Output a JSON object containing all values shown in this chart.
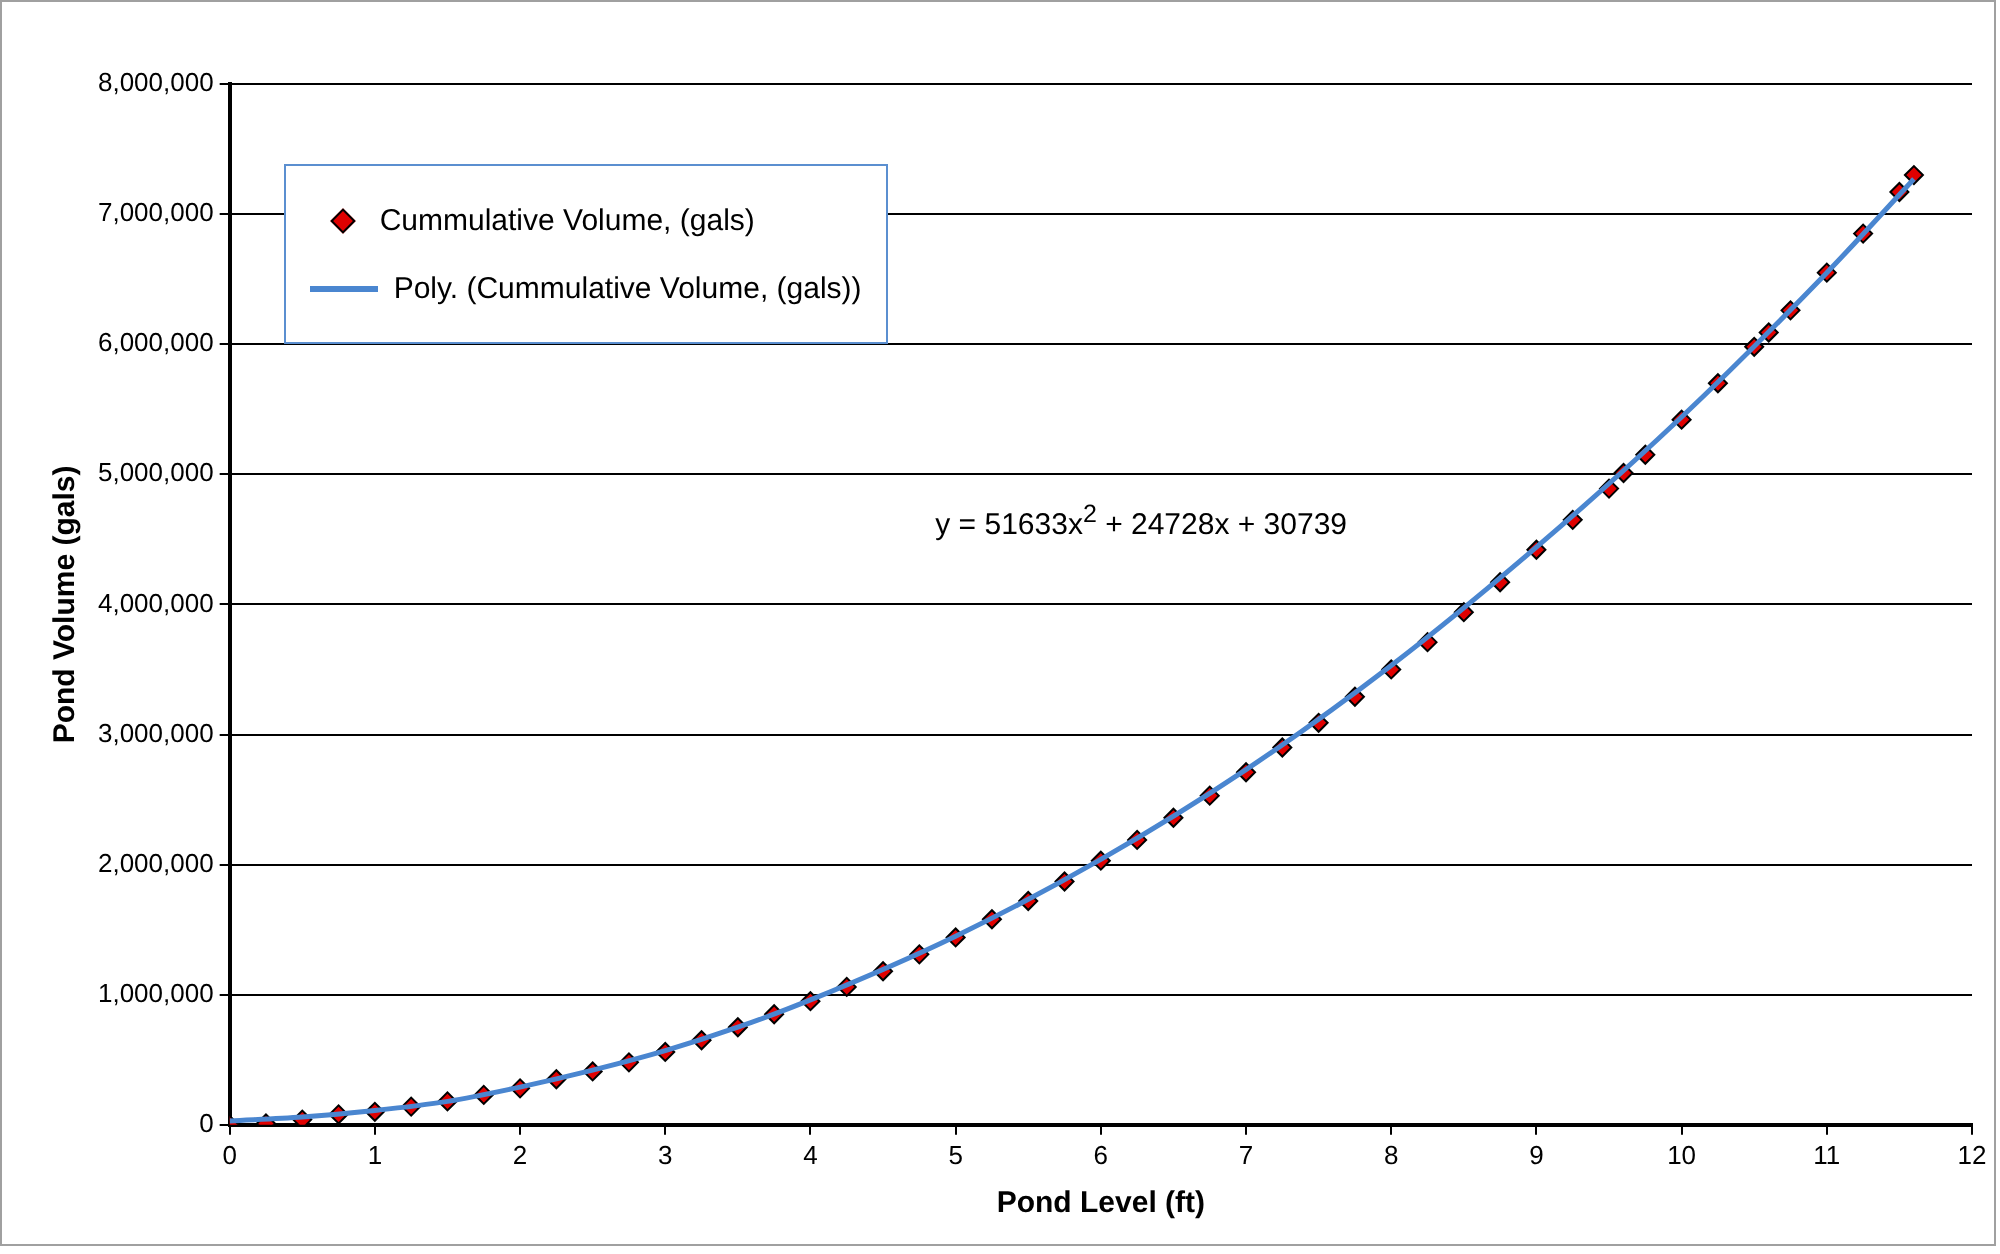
{
  "chart_data": {
    "type": "scatter",
    "xlabel": "Pond Level (ft)",
    "ylabel": "Pond Volume (gals)",
    "xlim": [
      0,
      12
    ],
    "xticks": [
      0,
      1,
      2,
      3,
      4,
      5,
      6,
      7,
      8,
      9,
      10,
      11,
      12
    ],
    "ylim": [
      0,
      8000000
    ],
    "yticks": [
      {
        "value": 0,
        "label": "0"
      },
      {
        "value": 1000000,
        "label": "1,000,000"
      },
      {
        "value": 2000000,
        "label": "2,000,000"
      },
      {
        "value": 3000000,
        "label": "3,000,000"
      },
      {
        "value": 4000000,
        "label": "4,000,000"
      },
      {
        "value": 5000000,
        "label": "5,000,000"
      },
      {
        "value": 6000000,
        "label": "6,000,000"
      },
      {
        "value": 7000000,
        "label": "7,000,000"
      },
      {
        "value": 8000000,
        "label": "8,000,000"
      }
    ],
    "grid": "y",
    "legend": "top left",
    "marker": "diamond",
    "annotations": [
      "y = 51633x$^{2}$ + 24728x + 30739"
    ],
    "series": [
      {
        "name": "Cummulative Volume, (gals)",
        "color": "#e00000",
        "x": [
          0,
          0.25,
          0.5,
          0.75,
          1,
          1.25,
          1.5,
          1.75,
          2,
          2.25,
          2.5,
          2.75,
          3,
          3.25,
          3.5,
          3.75,
          4,
          4.25,
          4.5,
          4.75,
          5,
          5.25,
          5.5,
          5.75,
          6,
          6.25,
          6.5,
          6.75,
          7,
          7.25,
          7.5,
          7.75,
          8,
          8.25,
          8.5,
          8.75,
          9,
          9.25,
          9.5,
          9.6,
          9.75,
          10,
          10.25,
          10.5,
          10.6,
          10.75,
          11,
          11.25,
          11.5,
          11.6
        ],
        "values": [
          0,
          10000,
          40000,
          80000,
          100000,
          140000,
          180000,
          230000,
          280000,
          350000,
          410000,
          480000,
          560000,
          650000,
          750000,
          850000,
          950000,
          1060000,
          1180000,
          1310000,
          1440000,
          1580000,
          1720000,
          1870000,
          2030000,
          2190000,
          2360000,
          2530000,
          2710000,
          2900000,
          3090000,
          3290000,
          3500000,
          3710000,
          3940000,
          4170000,
          4420000,
          4650000,
          4890000,
          5010000,
          5150000,
          5420000,
          5700000,
          5980000,
          6090000,
          6260000,
          6550000,
          6850000,
          7170000,
          7300000
        ]
      },
      {
        "name": "Poly. (Cummulative Volume, (gals))",
        "color": "#4a86d0",
        "type": "line",
        "marker": "none",
        "x": [
          0,
          0.5,
          1,
          1.5,
          2,
          2.5,
          3,
          3.5,
          4,
          5,
          6,
          7,
          8,
          9,
          10,
          11,
          11.6
        ],
        "values": [
          30000,
          60000,
          110000,
          180000,
          290000,
          420000,
          570000,
          750000,
          960000,
          1450000,
          2040000,
          2730000,
          3530000,
          4440000,
          5440000,
          6550000,
          7270000
        ]
      }
    ]
  }
}
